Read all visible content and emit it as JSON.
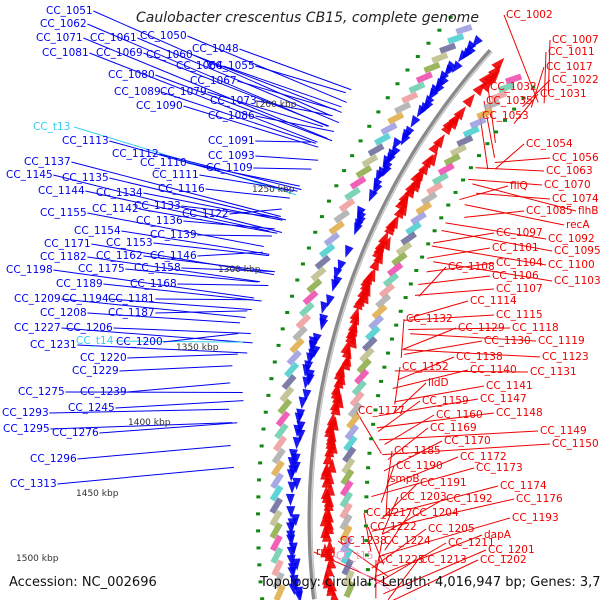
{
  "title": "Caulobacter crescentus CB15, complete genome",
  "footer": {
    "accession": "Accession: NC_002696",
    "summary": "Topology: circular; Length: 4,016,947 bp; Genes: 3,794"
  },
  "colors": {
    "forward_strand": "#0000ee",
    "reverse_strand": "#ee0000",
    "trna_forward": "#33ccee",
    "trna_reverse": "#ee99cc",
    "backbone": "#888888",
    "gc_marker": "#118811"
  },
  "scale_ticks": [
    "1200 kbp",
    "1250 kbp",
    "1300 kbp",
    "1350 kbp",
    "1400 kbp",
    "1450 kbp",
    "1500 kbp"
  ],
  "forward_labels": [
    {
      "name": "CC_1051",
      "type": "cds"
    },
    {
      "name": "CC_1062",
      "type": "cds"
    },
    {
      "name": "CC_1071",
      "type": "cds"
    },
    {
      "name": "CC_1061",
      "type": "cds"
    },
    {
      "name": "CC_1050",
      "type": "cds"
    },
    {
      "name": "CC_1048",
      "type": "cds"
    },
    {
      "name": "CC_1081",
      "type": "cds"
    },
    {
      "name": "CC_1069",
      "type": "cds"
    },
    {
      "name": "CC_1060",
      "type": "cds"
    },
    {
      "name": "CC_1064",
      "type": "cds"
    },
    {
      "name": "CC_1055",
      "type": "cds"
    },
    {
      "name": "CC_1067",
      "type": "cds"
    },
    {
      "name": "CC_1080",
      "type": "cds"
    },
    {
      "name": "CC_1089",
      "type": "cds"
    },
    {
      "name": "CC_1079",
      "type": "cds"
    },
    {
      "name": "CC_1073",
      "type": "cds"
    },
    {
      "name": "CC_1090",
      "type": "cds"
    },
    {
      "name": "CC_1086",
      "type": "cds"
    },
    {
      "name": "CC_t13",
      "type": "trna"
    },
    {
      "name": "CC_1091",
      "type": "cds"
    },
    {
      "name": "CC_1113",
      "type": "cds"
    },
    {
      "name": "CC_1093",
      "type": "cds"
    },
    {
      "name": "CC_1112",
      "type": "cds"
    },
    {
      "name": "CC_1110",
      "type": "cds"
    },
    {
      "name": "CC_1109",
      "type": "cds"
    },
    {
      "name": "CC_1137",
      "type": "cds"
    },
    {
      "name": "CC_1111",
      "type": "cds"
    },
    {
      "name": "CC_1145",
      "type": "cds"
    },
    {
      "name": "CC_1135",
      "type": "cds"
    },
    {
      "name": "CC_1116",
      "type": "cds"
    },
    {
      "name": "CC_1144",
      "type": "cds"
    },
    {
      "name": "CC_1134",
      "type": "cds"
    },
    {
      "name": "CC_1142",
      "type": "cds"
    },
    {
      "name": "CC_1133",
      "type": "cds"
    },
    {
      "name": "CC_1122",
      "type": "cds"
    },
    {
      "name": "CC_1155",
      "type": "cds"
    },
    {
      "name": "CC_1136",
      "type": "cds"
    },
    {
      "name": "CC_1154",
      "type": "cds"
    },
    {
      "name": "CC_1139",
      "type": "cds"
    },
    {
      "name": "CC_1171",
      "type": "cds"
    },
    {
      "name": "CC_1153",
      "type": "cds"
    },
    {
      "name": "CC_1182",
      "type": "cds"
    },
    {
      "name": "CC_1162",
      "type": "cds"
    },
    {
      "name": "CC_1146",
      "type": "cds"
    },
    {
      "name": "CC_1198",
      "type": "cds"
    },
    {
      "name": "CC_1175",
      "type": "cds"
    },
    {
      "name": "CC_1158",
      "type": "cds"
    },
    {
      "name": "CC_1189",
      "type": "cds"
    },
    {
      "name": "CC_1168",
      "type": "cds"
    },
    {
      "name": "CC_1209",
      "type": "cds"
    },
    {
      "name": "CC_1194",
      "type": "cds"
    },
    {
      "name": "CC_1181",
      "type": "cds"
    },
    {
      "name": "CC_1208",
      "type": "cds"
    },
    {
      "name": "CC_1187",
      "type": "cds"
    },
    {
      "name": "CC_1227",
      "type": "cds"
    },
    {
      "name": "CC_1206",
      "type": "cds"
    },
    {
      "name": "CC_1231",
      "type": "cds"
    },
    {
      "name": "CC_t14",
      "type": "trna"
    },
    {
      "name": "CC_1200",
      "type": "cds"
    },
    {
      "name": "CC_1220",
      "type": "cds"
    },
    {
      "name": "CC_1229",
      "type": "cds"
    },
    {
      "name": "CC_1275",
      "type": "cds"
    },
    {
      "name": "CC_1239",
      "type": "cds"
    },
    {
      "name": "CC_1245",
      "type": "cds"
    },
    {
      "name": "CC_1293",
      "type": "cds"
    },
    {
      "name": "CC_1295",
      "type": "cds"
    },
    {
      "name": "CC_1276",
      "type": "cds"
    },
    {
      "name": "CC_1296",
      "type": "cds"
    },
    {
      "name": "CC_1313",
      "type": "cds"
    }
  ],
  "reverse_labels": [
    {
      "name": "CC_1002",
      "type": "cds"
    },
    {
      "name": "CC_1007",
      "type": "cds"
    },
    {
      "name": "CC_1011",
      "type": "cds"
    },
    {
      "name": "CC_1017",
      "type": "cds"
    },
    {
      "name": "CC_1022",
      "type": "cds"
    },
    {
      "name": "CC_1032",
      "type": "cds"
    },
    {
      "name": "CC_1031",
      "type": "cds"
    },
    {
      "name": "CC_1035",
      "type": "cds"
    },
    {
      "name": "CC_1053",
      "type": "cds"
    },
    {
      "name": "CC_1054",
      "type": "cds"
    },
    {
      "name": "CC_1056",
      "type": "cds"
    },
    {
      "name": "CC_1063",
      "type": "cds"
    },
    {
      "name": "fliQ",
      "type": "cds"
    },
    {
      "name": "CC_1070",
      "type": "cds"
    },
    {
      "name": "CC_1074",
      "type": "cds"
    },
    {
      "name": "CC_1085",
      "type": "cds"
    },
    {
      "name": "flhB",
      "type": "cds"
    },
    {
      "name": "recA",
      "type": "cds"
    },
    {
      "name": "CC_1097",
      "type": "cds"
    },
    {
      "name": "CC_1092",
      "type": "cds"
    },
    {
      "name": "CC_1101",
      "type": "cds"
    },
    {
      "name": "CC_1095",
      "type": "cds"
    },
    {
      "name": "CC_1104",
      "type": "cds"
    },
    {
      "name": "CC_1100",
      "type": "cds"
    },
    {
      "name": "CC_1108",
      "type": "cds"
    },
    {
      "name": "CC_1106",
      "type": "cds"
    },
    {
      "name": "CC_1103",
      "type": "cds"
    },
    {
      "name": "CC_1107",
      "type": "cds"
    },
    {
      "name": "CC_1114",
      "type": "cds"
    },
    {
      "name": "CC_1115",
      "type": "cds"
    },
    {
      "name": "CC_1132",
      "type": "cds"
    },
    {
      "name": "CC_1129",
      "type": "cds"
    },
    {
      "name": "CC_1118",
      "type": "cds"
    },
    {
      "name": "CC_1130",
      "type": "cds"
    },
    {
      "name": "CC_1119",
      "type": "cds"
    },
    {
      "name": "CC_1138",
      "type": "cds"
    },
    {
      "name": "CC_1123",
      "type": "cds"
    },
    {
      "name": "CC_1152",
      "type": "cds"
    },
    {
      "name": "CC_1140",
      "type": "cds"
    },
    {
      "name": "CC_1131",
      "type": "cds"
    },
    {
      "name": "lldD",
      "type": "cds"
    },
    {
      "name": "CC_1141",
      "type": "cds"
    },
    {
      "name": "CC_1159",
      "type": "cds"
    },
    {
      "name": "CC_1147",
      "type": "cds"
    },
    {
      "name": "CC_1177",
      "type": "cds"
    },
    {
      "name": "CC_1160",
      "type": "cds"
    },
    {
      "name": "CC_1148",
      "type": "cds"
    },
    {
      "name": "CC_1169",
      "type": "cds"
    },
    {
      "name": "CC_1149",
      "type": "cds"
    },
    {
      "name": "CC_1170",
      "type": "cds"
    },
    {
      "name": "CC_1150",
      "type": "cds"
    },
    {
      "name": "CC_1185",
      "type": "cds"
    },
    {
      "name": "CC_1172",
      "type": "cds"
    },
    {
      "name": "CC_1190",
      "type": "cds"
    },
    {
      "name": "CC_1173",
      "type": "cds"
    },
    {
      "name": "smpB",
      "type": "cds"
    },
    {
      "name": "CC_1191",
      "type": "cds"
    },
    {
      "name": "CC_1174",
      "type": "cds"
    },
    {
      "name": "CC_1203",
      "type": "cds"
    },
    {
      "name": "CC_1192",
      "type": "cds"
    },
    {
      "name": "CC_1176",
      "type": "cds"
    },
    {
      "name": "CC_1217",
      "type": "cds"
    },
    {
      "name": "CC_1204",
      "type": "cds"
    },
    {
      "name": "CC_1193",
      "type": "cds"
    },
    {
      "name": "CC_1222",
      "type": "cds"
    },
    {
      "name": "CC_1205",
      "type": "cds"
    },
    {
      "name": "dapA",
      "type": "cds"
    },
    {
      "name": "CC_1238",
      "type": "cds"
    },
    {
      "name": "CC_1224",
      "type": "cds"
    },
    {
      "name": "CC_1211",
      "type": "cds"
    },
    {
      "name": "CC_1201",
      "type": "cds"
    },
    {
      "name": "rpsJ",
      "type": "cds"
    },
    {
      "name": "CC_t15",
      "type": "trna"
    },
    {
      "name": "CC_1225",
      "type": "cds"
    },
    {
      "name": "CC_1213",
      "type": "cds"
    },
    {
      "name": "CC_1202",
      "type": "cds"
    }
  ]
}
